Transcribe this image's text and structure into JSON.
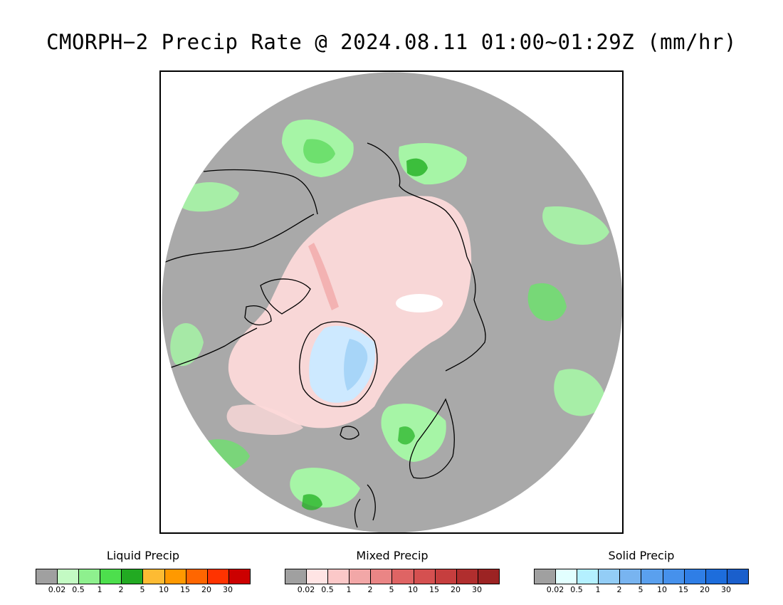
{
  "title": "CMORPH−2 Precip Rate @ 2024.08.11 01:00~01:29Z (mm/hr)",
  "map": {
    "colors": {
      "background": "#a9a9a9",
      "land_outline": "#000000",
      "liquid_light": "#a6f5a6",
      "liquid_mid": "#6ee06e",
      "liquid_dark": "#22b022",
      "mixed_light": "#fcd9d9",
      "mixed_mid": "#f1a3a3",
      "mixed_dark": "#d96565",
      "solid_light": "#cde9ff",
      "solid_mid": "#9ed0f6",
      "pole_hole": "#ffffff"
    }
  },
  "legends": [
    {
      "title": "Liquid Precip",
      "colors": [
        "#a0a0a0",
        "#c3fac3",
        "#8ef08e",
        "#4ddf4d",
        "#22aa22",
        "#fdbb33",
        "#ff9900",
        "#ff6600",
        "#ff3300",
        "#cc0000"
      ],
      "ticks": [
        "0.02",
        "0.5",
        "1",
        "2",
        "5",
        "10",
        "15",
        "20",
        "30"
      ]
    },
    {
      "title": "Mixed Precip",
      "colors": [
        "#a0a0a0",
        "#ffe4e4",
        "#fbc8c8",
        "#f2a7a7",
        "#ea8585",
        "#df6464",
        "#d55050",
        "#c63e3e",
        "#b02e2e",
        "#9c2323"
      ],
      "ticks": [
        "0.02",
        "0.5",
        "1",
        "2",
        "5",
        "10",
        "15",
        "20",
        "30"
      ]
    },
    {
      "title": "Solid Precip",
      "colors": [
        "#a0a0a0",
        "#e2ffff",
        "#b4f0ff",
        "#93cdf6",
        "#78b4f0",
        "#5aa0ee",
        "#4691ec",
        "#2f7ee6",
        "#1d6ddc",
        "#1a5fcc"
      ],
      "ticks": [
        "0.02",
        "0.5",
        "1",
        "2",
        "5",
        "10",
        "15",
        "20",
        "30"
      ]
    }
  ]
}
